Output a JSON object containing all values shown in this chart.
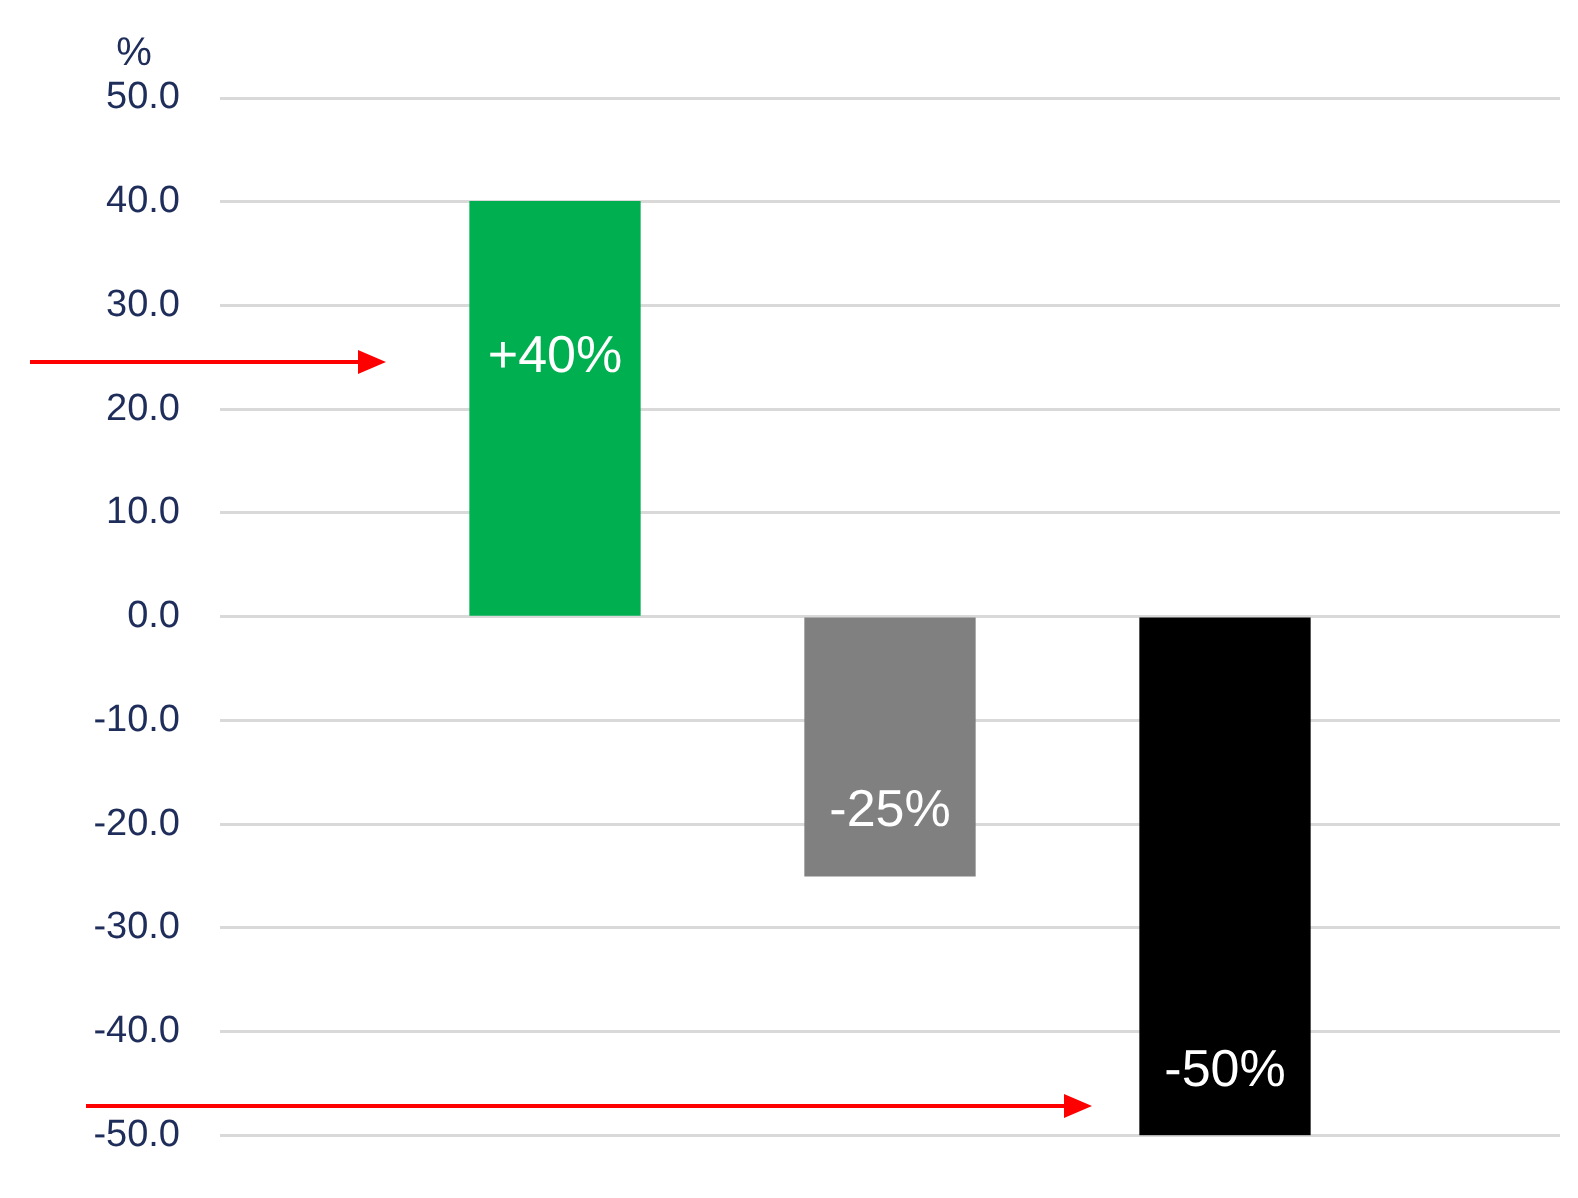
{
  "chart_data": {
    "type": "bar",
    "ylabel": "%",
    "categories": [
      null,
      null,
      null,
      null,
      null
    ],
    "values": [
      null,
      40,
      -25,
      -50,
      null
    ],
    "colors": [
      "#00b050",
      "#00b050",
      "#808080",
      "#000000",
      "#000000"
    ],
    "value_labels": [
      null,
      "+40%",
      "-25%",
      "-50%",
      null
    ],
    "ylim": [
      -50,
      50
    ],
    "yticks": [
      {
        "value": -50,
        "label": "-50.0"
      },
      {
        "value": -40,
        "label": "-40.0"
      },
      {
        "value": -30,
        "label": "-30.0"
      },
      {
        "value": -20,
        "label": "-20.0"
      },
      {
        "value": -10,
        "label": "-10.0"
      },
      {
        "value": 0,
        "label": "0.0"
      },
      {
        "value": 10,
        "label": "10.0"
      },
      {
        "value": 20,
        "label": "20.0"
      },
      {
        "value": 30,
        "label": "30.0"
      },
      {
        "value": 40,
        "label": "40.0"
      },
      {
        "value": 50,
        "label": "50.0"
      }
    ],
    "grid": "y",
    "legend": false
  }
}
